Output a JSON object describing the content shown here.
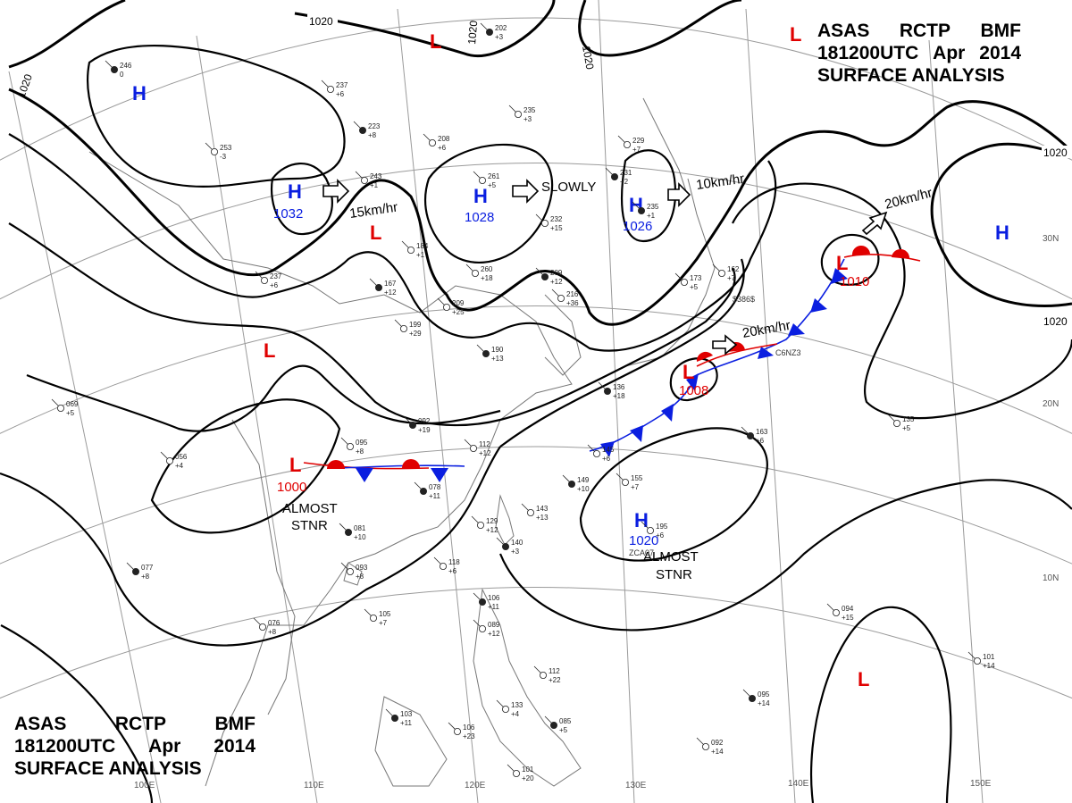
{
  "header": {
    "agency": "ASAS",
    "station": "RCTP",
    "office": "BMF",
    "datetime": "181200UTC",
    "month": "Apr",
    "year": "2014",
    "product": "SURFACE ANALYSIS"
  },
  "colors": {
    "low": "#e00000",
    "high": "#0a1ee0",
    "warm_front": "#e00000",
    "cold_front": "#0a1ee0",
    "isobar": "#000000",
    "grid": "#9a9a9a",
    "coast": "#777777"
  },
  "grid_labels": {
    "lat": [
      "30N",
      "20N",
      "10N"
    ],
    "lon": [
      "100E",
      "110E",
      "120E",
      "130E",
      "140E",
      "150E"
    ]
  },
  "isobar_labels": [
    "1020",
    "1020",
    "1020",
    "1020",
    "1020",
    "1020"
  ],
  "pressure_centers": [
    {
      "type": "high",
      "letter": "H",
      "value": "",
      "icon": "high-pressure-center"
    },
    {
      "type": "high",
      "letter": "H",
      "value": "1032",
      "icon": "high-pressure-center"
    },
    {
      "type": "high",
      "letter": "H",
      "value": "1028",
      "icon": "high-pressure-center"
    },
    {
      "type": "high",
      "letter": "H",
      "value": "1026",
      "icon": "high-pressure-center"
    },
    {
      "type": "high",
      "letter": "H",
      "value": "",
      "icon": "high-pressure-center"
    },
    {
      "type": "high",
      "letter": "H",
      "value": "1020",
      "icon": "high-pressure-center"
    },
    {
      "type": "low",
      "letter": "L",
      "value": "",
      "icon": "low-pressure-center"
    },
    {
      "type": "low",
      "letter": "L",
      "value": "",
      "icon": "low-pressure-center"
    },
    {
      "type": "low",
      "letter": "L",
      "value": "",
      "icon": "low-pressure-center"
    },
    {
      "type": "low",
      "letter": "L",
      "value": "1000",
      "icon": "low-pressure-center"
    },
    {
      "type": "low",
      "letter": "L",
      "value": "1008",
      "icon": "low-pressure-center"
    },
    {
      "type": "low",
      "letter": "L",
      "value": "1010",
      "icon": "low-pressure-center"
    },
    {
      "type": "low",
      "letter": "L",
      "value": "",
      "icon": "low-pressure-center"
    },
    {
      "type": "low",
      "letter": "L",
      "value": "",
      "icon": "low-pressure-center"
    }
  ],
  "motion_labels": [
    "15km/hr",
    "SLOWLY",
    "10km/hr",
    "20km/hr",
    "20km/hr"
  ],
  "stationary_labels": [
    [
      "ALMOST",
      "STNR"
    ],
    [
      "ALMOST",
      "STNR"
    ]
  ],
  "station_plots": [
    [
      "246",
      "0"
    ],
    [
      "237",
      "+6"
    ],
    [
      "253",
      "-3"
    ],
    [
      "223",
      "+8"
    ],
    [
      "208",
      "+6"
    ],
    [
      "243",
      "+1"
    ],
    [
      "202",
      "+3"
    ],
    [
      "235",
      "+3"
    ],
    [
      "229",
      "+7"
    ],
    [
      "231",
      "+2"
    ],
    [
      "261",
      "+5"
    ],
    [
      "232",
      "+15"
    ],
    [
      "235",
      "+1"
    ],
    [
      "237",
      "+6"
    ],
    [
      "184",
      "+1"
    ],
    [
      "167",
      "+12"
    ],
    [
      "209",
      "+25"
    ],
    [
      "260",
      "+18"
    ],
    [
      "209",
      "+12"
    ],
    [
      "216",
      "+36"
    ],
    [
      "199",
      "+29"
    ],
    [
      "190",
      "+13"
    ],
    [
      "162",
      "+7"
    ],
    [
      "173",
      "+5"
    ],
    [
      "092",
      "+19"
    ],
    [
      "112",
      "+12"
    ],
    [
      "095",
      "+8"
    ],
    [
      "078",
      "+11"
    ],
    [
      "145",
      "+6"
    ],
    [
      "155",
      "+7"
    ],
    [
      "149",
      "+10"
    ],
    [
      "143",
      "+13"
    ],
    [
      "129",
      "+12"
    ],
    [
      "140",
      "+3"
    ],
    [
      "118",
      "+6"
    ],
    [
      "093",
      "+8"
    ],
    [
      "081",
      "+10"
    ],
    [
      "105",
      "+7"
    ],
    [
      "076",
      "+8"
    ],
    [
      "077",
      "+8"
    ],
    [
      "069",
      "+5"
    ],
    [
      "056",
      "+4"
    ],
    [
      "106",
      "+11"
    ],
    [
      "089",
      "+12"
    ],
    [
      "112",
      "+22"
    ],
    [
      "103",
      "+11"
    ],
    [
      "106",
      "+23"
    ],
    [
      "133",
      "+4"
    ],
    [
      "085",
      "+5"
    ],
    [
      "101",
      "+20"
    ],
    [
      "094",
      "+15"
    ],
    [
      "095",
      "+14"
    ],
    [
      "092",
      "+14"
    ],
    [
      "101",
      "+14"
    ],
    [
      "163",
      "+6"
    ],
    [
      "135",
      "+5"
    ],
    [
      "195",
      "+6"
    ],
    [
      "136",
      "+18"
    ]
  ],
  "misc_labels": [
    "$386$",
    "C6NZ3",
    "ZCA07"
  ]
}
